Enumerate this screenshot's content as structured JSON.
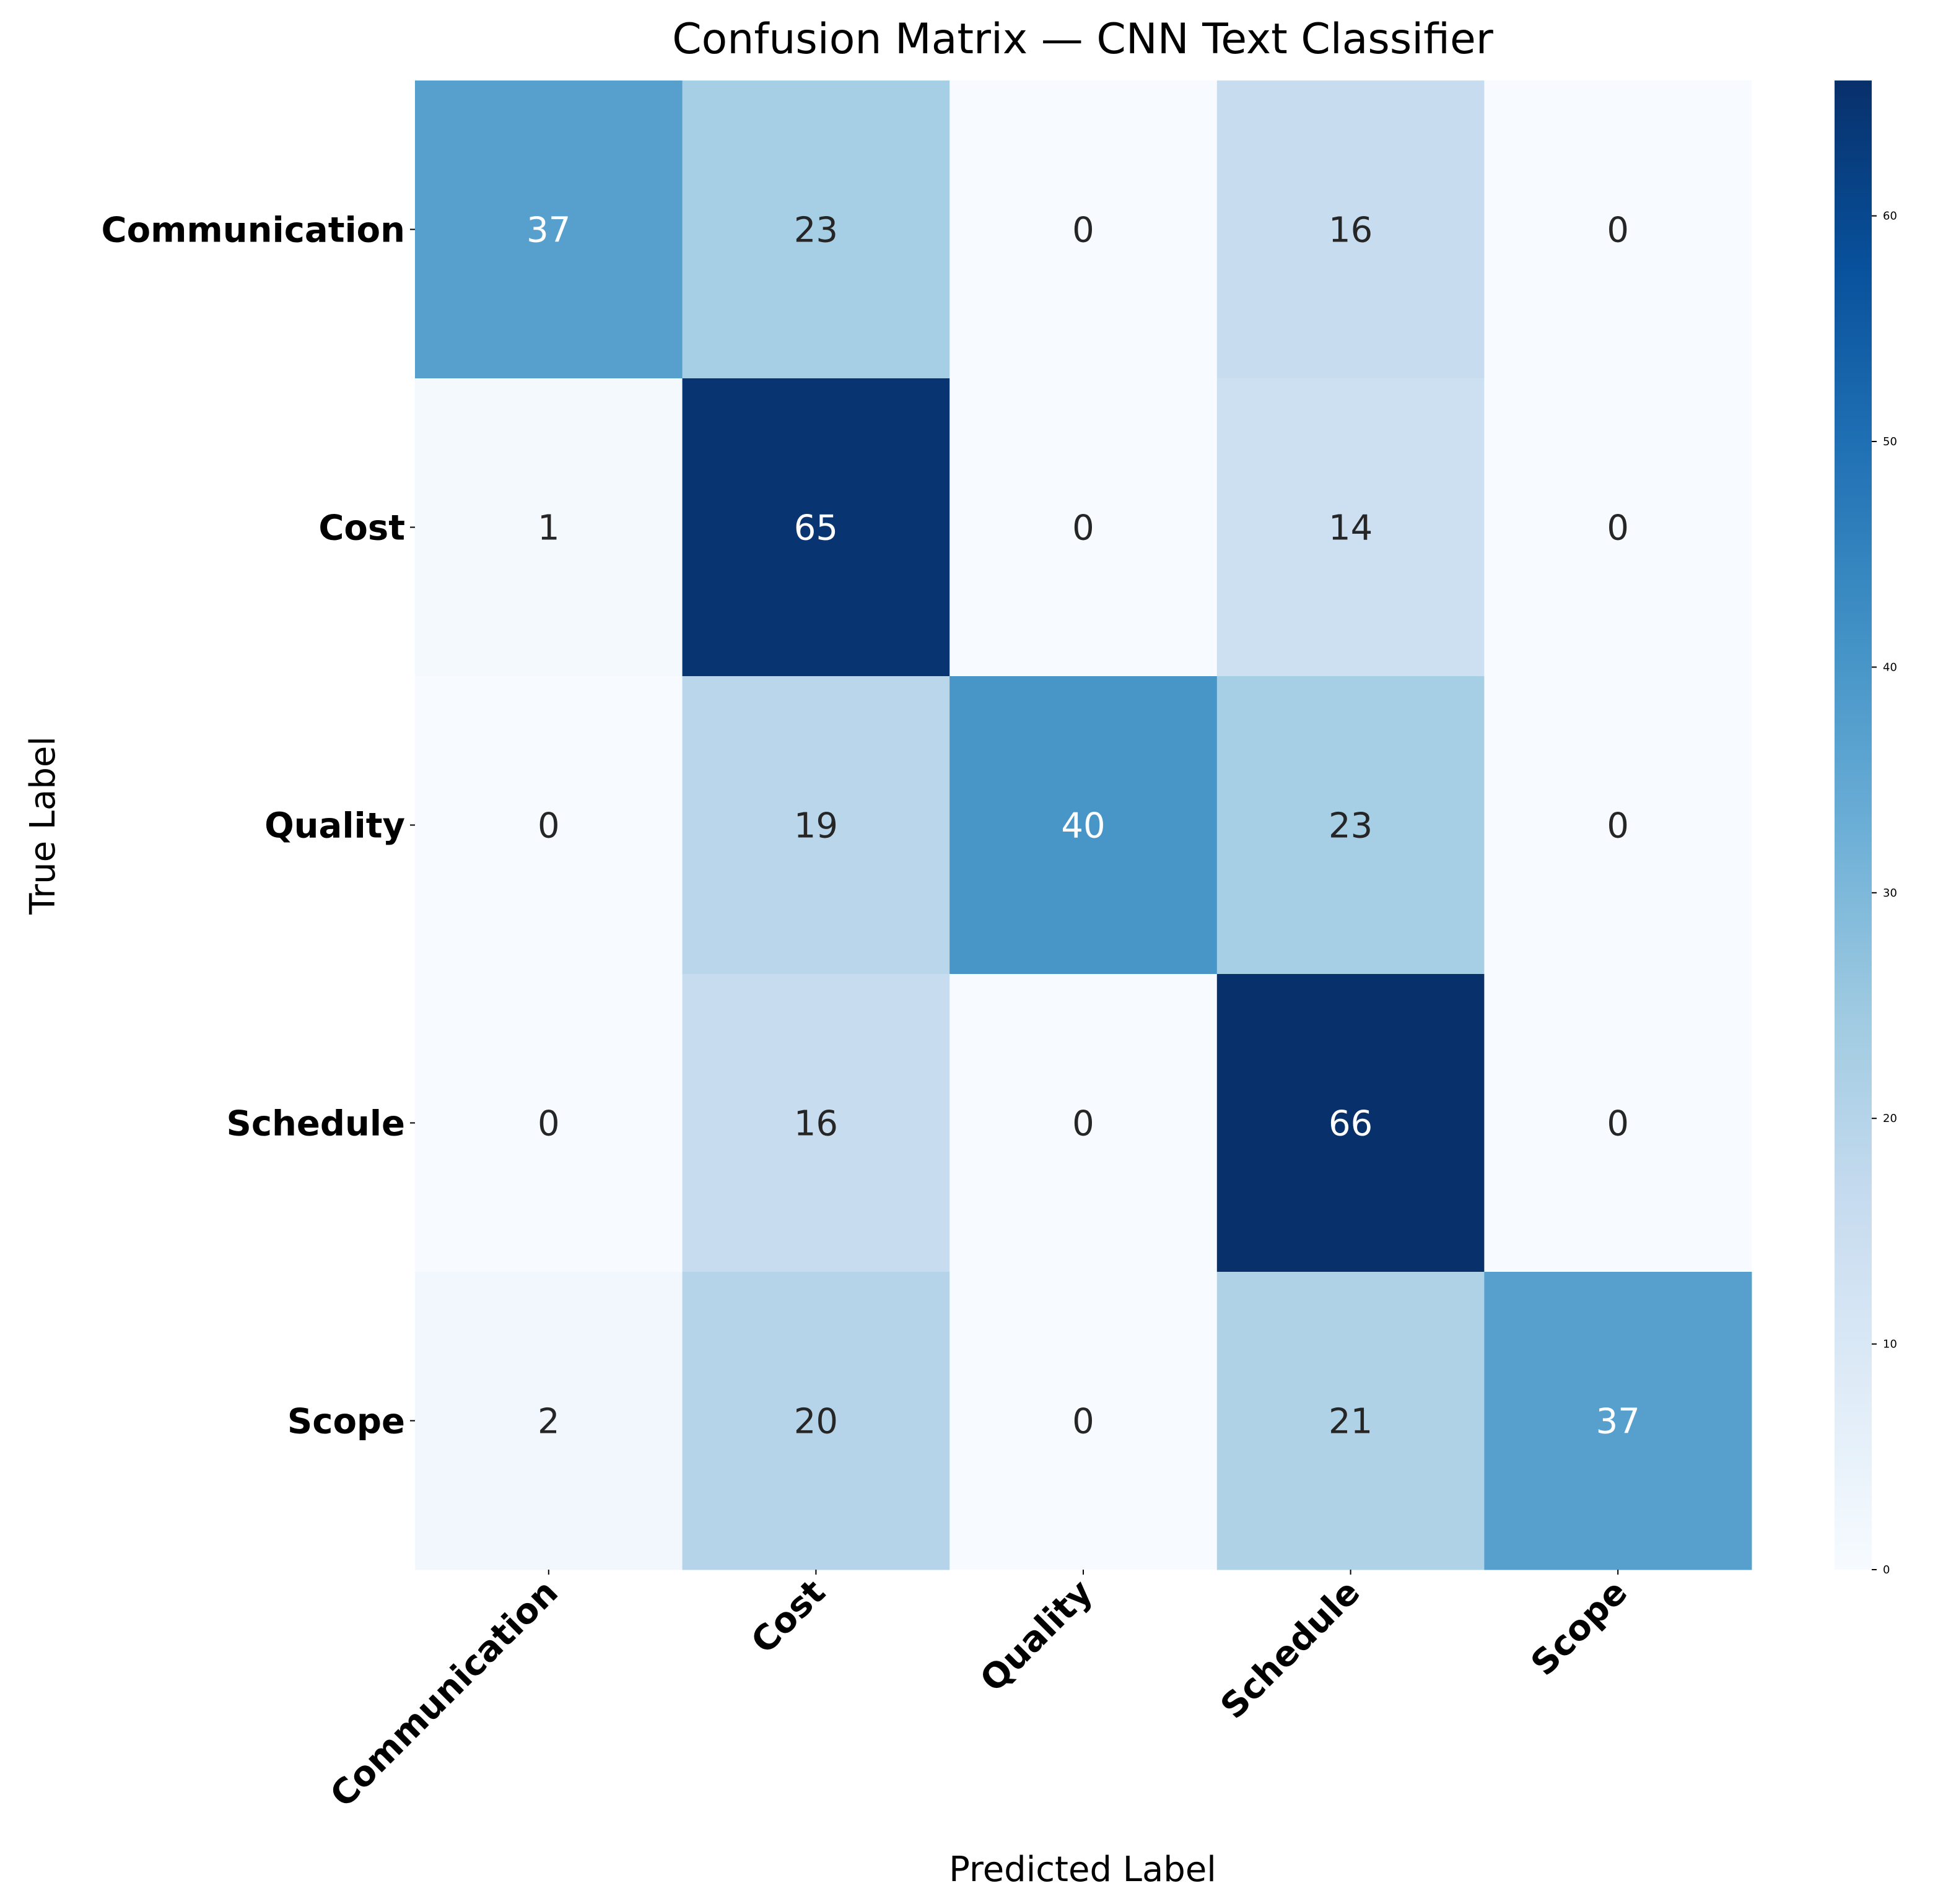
{
  "chart_data": {
    "type": "heatmap",
    "title": "Confusion Matrix — CNN Text Classifier",
    "xlabel": "Predicted Label",
    "ylabel": "True Label",
    "x_categories": [
      "Communication",
      "Cost",
      "Quality",
      "Schedule",
      "Scope"
    ],
    "y_categories": [
      "Communication",
      "Cost",
      "Quality",
      "Schedule",
      "Scope"
    ],
    "matrix": [
      [
        37,
        23,
        0,
        16,
        0
      ],
      [
        1,
        65,
        0,
        14,
        0
      ],
      [
        0,
        19,
        40,
        23,
        0
      ],
      [
        0,
        16,
        0,
        66,
        0
      ],
      [
        2,
        20,
        0,
        21,
        37
      ]
    ],
    "colormap": "Blues",
    "color_range": [
      0,
      66
    ],
    "colorbar_ticks": [
      "0",
      "10",
      "20",
      "30",
      "40",
      "50",
      "60"
    ],
    "colorbar_tick_values": [
      0,
      10,
      20,
      30,
      40,
      50,
      60
    ],
    "annotation_colors": {
      "dark_text": "#262626",
      "light_text": "#ffffff"
    }
  }
}
